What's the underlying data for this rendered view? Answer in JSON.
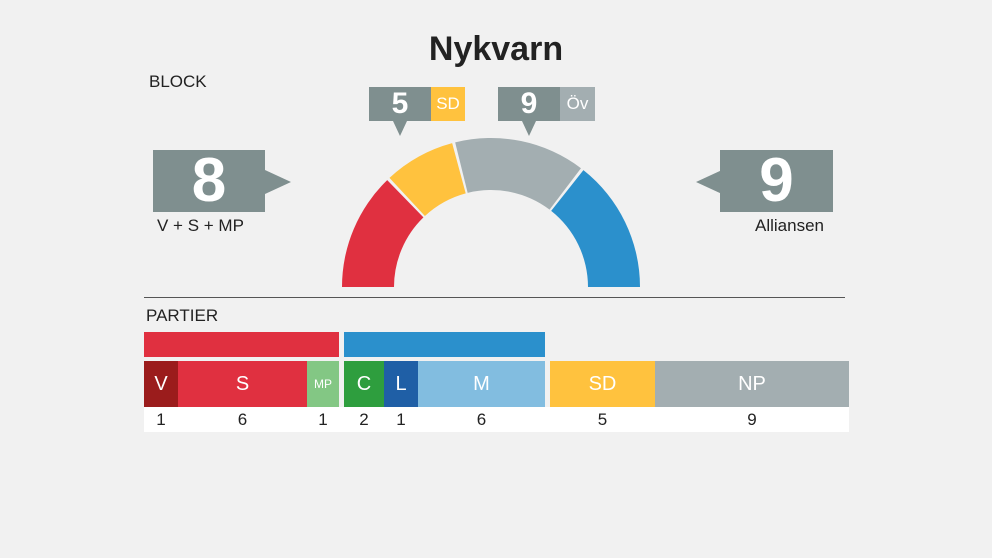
{
  "title": "Nykvarn",
  "block_label": "BLOCK",
  "partier_label": "PARTIER",
  "colors": {
    "V": "#9b1c1c",
    "S": "#e03040",
    "MP": "#83c784",
    "C": "#2e9e3e",
    "L": "#1f5fa6",
    "M": "#82bde0",
    "SD": "#ffc23e",
    "NP": "#a3aeb1",
    "red_block": "#e03040",
    "blue_block": "#2b90cc",
    "box": "#7f8f8f"
  },
  "left_block": {
    "seats": "8",
    "label": "V + S + MP"
  },
  "right_block": {
    "seats": "9",
    "label": "Alliansen"
  },
  "sd_callout": {
    "seats": "5",
    "tag": "SD"
  },
  "ov_callout": {
    "seats": "9",
    "tag": "Öv"
  },
  "chart_data": [
    {
      "type": "pie",
      "variant": "semicircle-parliament",
      "title": "Nykvarn",
      "segments": [
        {
          "name": "V + S + MP",
          "value": 8,
          "color": "#e03040"
        },
        {
          "name": "SD",
          "value": 5,
          "color": "#ffc23e"
        },
        {
          "name": "Öv",
          "value": 9,
          "color": "#a3aeb1"
        },
        {
          "name": "Alliansen",
          "value": 9,
          "color": "#2b90cc"
        }
      ]
    },
    {
      "type": "bar",
      "variant": "stacked-horizontal",
      "categories": [
        "V",
        "S",
        "MP",
        "C",
        "L",
        "M",
        "SD",
        "NP"
      ],
      "values": [
        1,
        6,
        1,
        2,
        1,
        6,
        5,
        9
      ],
      "labels": [
        "1",
        "6",
        "1",
        "2",
        "1",
        "6",
        "5",
        "9"
      ],
      "groups": [
        {
          "name": "red",
          "members": [
            "V",
            "S",
            "MP"
          ]
        },
        {
          "name": "blue",
          "members": [
            "C",
            "L",
            "M"
          ]
        }
      ]
    }
  ]
}
